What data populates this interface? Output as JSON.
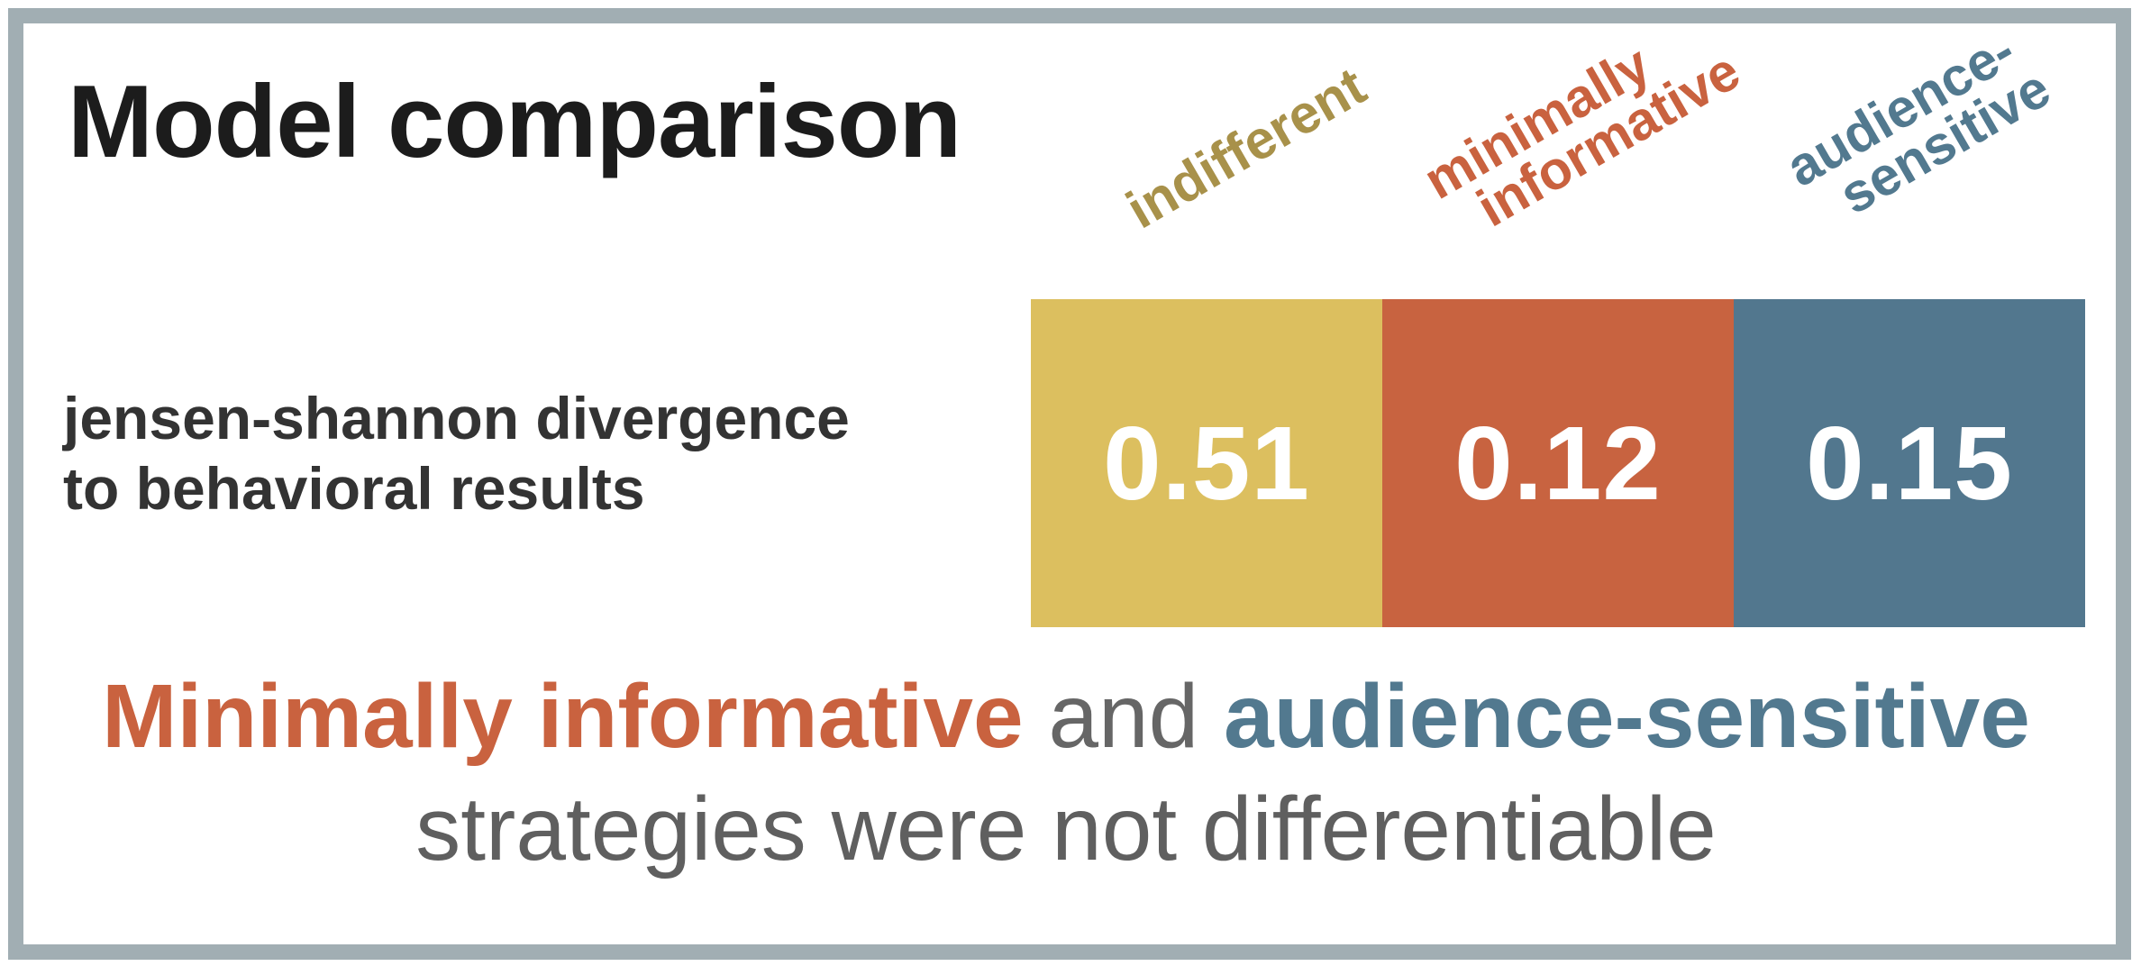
{
  "title": "Model comparison",
  "metric_label": {
    "line1": "jensen-shannon divergence",
    "line2": "to behavioral results"
  },
  "chart_data": {
    "type": "table",
    "title": "Model comparison",
    "row_label": "jensen-shannon divergence to behavioral results",
    "categories": [
      "indifferent",
      "minimally informative",
      "audience-sensitive"
    ],
    "values": [
      0.51,
      0.12,
      0.15
    ],
    "labels": [
      {
        "lines": [
          "indifferent"
        ],
        "color": "#a8914a"
      },
      {
        "lines": [
          "minimally",
          "informative"
        ],
        "color": "#c9623f"
      },
      {
        "lines": [
          "audience-",
          "sensitive"
        ],
        "color": "#52798f"
      }
    ],
    "cells": [
      {
        "value": "0.51",
        "color": "#dcbf5f"
      },
      {
        "value": "0.12",
        "color": "#c86340"
      },
      {
        "value": "0.15",
        "color": "#52778e"
      }
    ]
  },
  "conclusion": {
    "part1": "Minimally informative",
    "part1_color": "#c9623f",
    "connector": " and ",
    "part2": "audience-sensitive",
    "part2_color": "#52798f",
    "line2": "strategies were not differentiable"
  },
  "colors": {
    "frame_border": "#a1aeb3",
    "title": "#1c1c1c",
    "body_text": "#333333"
  }
}
